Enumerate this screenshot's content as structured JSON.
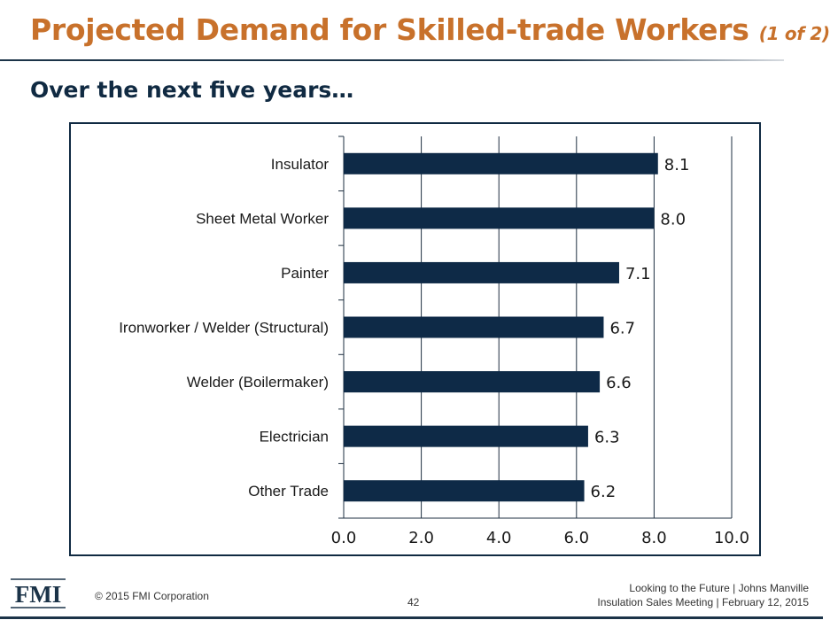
{
  "slide": {
    "title": "Projected Demand for Skilled-trade Workers",
    "title_part": "(1 of 2)",
    "subtitle": "Over the next five years…"
  },
  "footer": {
    "logo_text": "FMI",
    "copyright": "© 2015 FMI Corporation",
    "page_number": "42",
    "line1": "Looking to the Future  | Johns Manville",
    "line2": "Insulation Sales Meeting  | February 12, 2015"
  },
  "colors": {
    "title": "#c8712b",
    "bar": "#0e2a47",
    "navy": "#102a42"
  },
  "chart_data": {
    "type": "bar",
    "orientation": "horizontal",
    "categories": [
      "Insulator",
      "Sheet Metal Worker",
      "Painter",
      "Ironworker / Welder (Structural)",
      "Welder (Boilermaker)",
      "Electrician",
      "Other Trade"
    ],
    "values": [
      8.1,
      8.0,
      7.1,
      6.7,
      6.6,
      6.3,
      6.2
    ],
    "value_labels": [
      "8.1",
      "8.0",
      "7.1",
      "6.7",
      "6.6",
      "6.3",
      "6.2"
    ],
    "xlim": [
      0,
      10
    ],
    "xticks": [
      "0.0",
      "2.0",
      "4.0",
      "6.0",
      "8.0",
      "10.0"
    ],
    "grid": true,
    "legend": "none"
  }
}
